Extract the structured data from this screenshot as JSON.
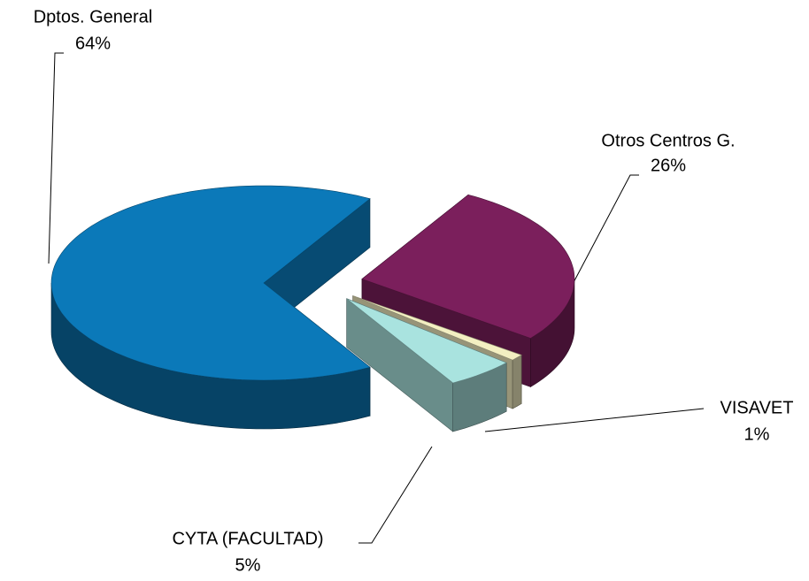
{
  "chart_data": {
    "type": "pie",
    "categories": [
      "Otros Centros G.",
      "VISAVET",
      "CYTA (FACULTAD)",
      "Dptos. General"
    ],
    "values": [
      26,
      1,
      5,
      64
    ],
    "value_labels": [
      "26%",
      "1%",
      "5%",
      "64%"
    ],
    "colors": [
      "#7b1f5c",
      "#f3efc2",
      "#a9e3df",
      "#0b79b9"
    ]
  }
}
